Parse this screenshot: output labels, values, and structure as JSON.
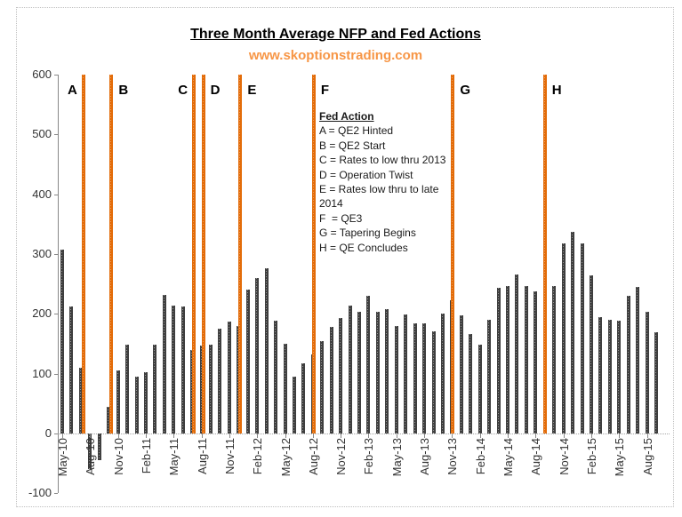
{
  "title": "Three Month Average NFP and Fed Actions",
  "subtitle": "www.skoptionstrading.com",
  "colors": {
    "fed_line_orange": "#E36C09",
    "subtitle_orange": "#F79646",
    "bar_dark": "#3F3F3F",
    "axis_gray": "#898989",
    "border_gray": "#BFBFBF"
  },
  "legend": {
    "heading": "Fed Action",
    "lines": [
      "A = QE2 Hinted",
      "B = QE2 Start",
      "C = Rates to low thru 2013",
      "D = Operation Twist",
      "E = Rates low thru to late",
      "2014",
      "F  = QE3",
      "G = Tapering Begins",
      "H = QE Concludes"
    ]
  },
  "chart_data": {
    "type": "bar",
    "title": "Three Month Average NFP and Fed Actions",
    "series_name": "Three Month Average NFP",
    "ylim": [
      -100,
      600
    ],
    "ytick_interval": 100,
    "yticks": [
      600,
      500,
      400,
      300,
      200,
      100,
      0,
      -100
    ],
    "xtick_every_n_months": 3,
    "grid": false,
    "months": [
      "May-10",
      "Jun-10",
      "Jul-10",
      "Aug-10",
      "Sep-10",
      "Oct-10",
      "Nov-10",
      "Dec-10",
      "Jan-11",
      "Feb-11",
      "Mar-11",
      "Apr-11",
      "May-11",
      "Jun-11",
      "Jul-11",
      "Aug-11",
      "Sep-11",
      "Oct-11",
      "Nov-11",
      "Dec-11",
      "Jan-12",
      "Feb-12",
      "Mar-12",
      "Apr-12",
      "May-12",
      "Jun-12",
      "Jul-12",
      "Aug-12",
      "Sep-12",
      "Oct-12",
      "Nov-12",
      "Dec-12",
      "Jan-13",
      "Feb-13",
      "Mar-13",
      "Apr-13",
      "May-13",
      "Jun-13",
      "Jul-13",
      "Aug-13",
      "Sep-13",
      "Oct-13",
      "Nov-13",
      "Dec-13",
      "Jan-14",
      "Feb-14",
      "Mar-14",
      "Apr-14",
      "May-14",
      "Jun-14",
      "Jul-14",
      "Aug-14",
      "Sep-14",
      "Oct-14",
      "Nov-14",
      "Dec-14",
      "Jan-15",
      "Feb-15",
      "Mar-15",
      "Apr-15",
      "May-15",
      "Jun-15",
      "Jul-15",
      "Aug-15",
      "Sep-15"
    ],
    "values": [
      307,
      213,
      110,
      -60,
      -45,
      45,
      105,
      148,
      95,
      103,
      148,
      232,
      214,
      213,
      140,
      147,
      149,
      175,
      187,
      180,
      240,
      260,
      276,
      188,
      150,
      95,
      118,
      132,
      155,
      178,
      193,
      214,
      203,
      230,
      204,
      208,
      180,
      199,
      184,
      184,
      171,
      200,
      223,
      197,
      166,
      148,
      190,
      243,
      246,
      266,
      247,
      238,
      240,
      246,
      318,
      337,
      318,
      264,
      195,
      190,
      188,
      230,
      245,
      203,
      170
    ],
    "fed_actions": [
      {
        "label": "A",
        "meaning": "QE2 Hinted",
        "month_index": 2.3,
        "label_side": "left"
      },
      {
        "label": "B",
        "meaning": "QE2 Start",
        "month_index": 5.3,
        "label_side": "right"
      },
      {
        "label": "C",
        "meaning": "Rates to low thru 2013",
        "month_index": 14.2,
        "label_side": "left"
      },
      {
        "label": "D",
        "meaning": "Operation Twist",
        "month_index": 15.2,
        "label_side": "right"
      },
      {
        "label": "E",
        "meaning": "Rates low thru to late 2014",
        "month_index": 19.2,
        "label_side": "right"
      },
      {
        "label": "F",
        "meaning": "QE3",
        "month_index": 27.1,
        "label_side": "right"
      },
      {
        "label": "G",
        "meaning": "Tapering Begins",
        "month_index": 42.1,
        "label_side": "right"
      },
      {
        "label": "H",
        "meaning": "QE Concludes",
        "month_index": 52.0,
        "label_side": "right"
      }
    ]
  }
}
